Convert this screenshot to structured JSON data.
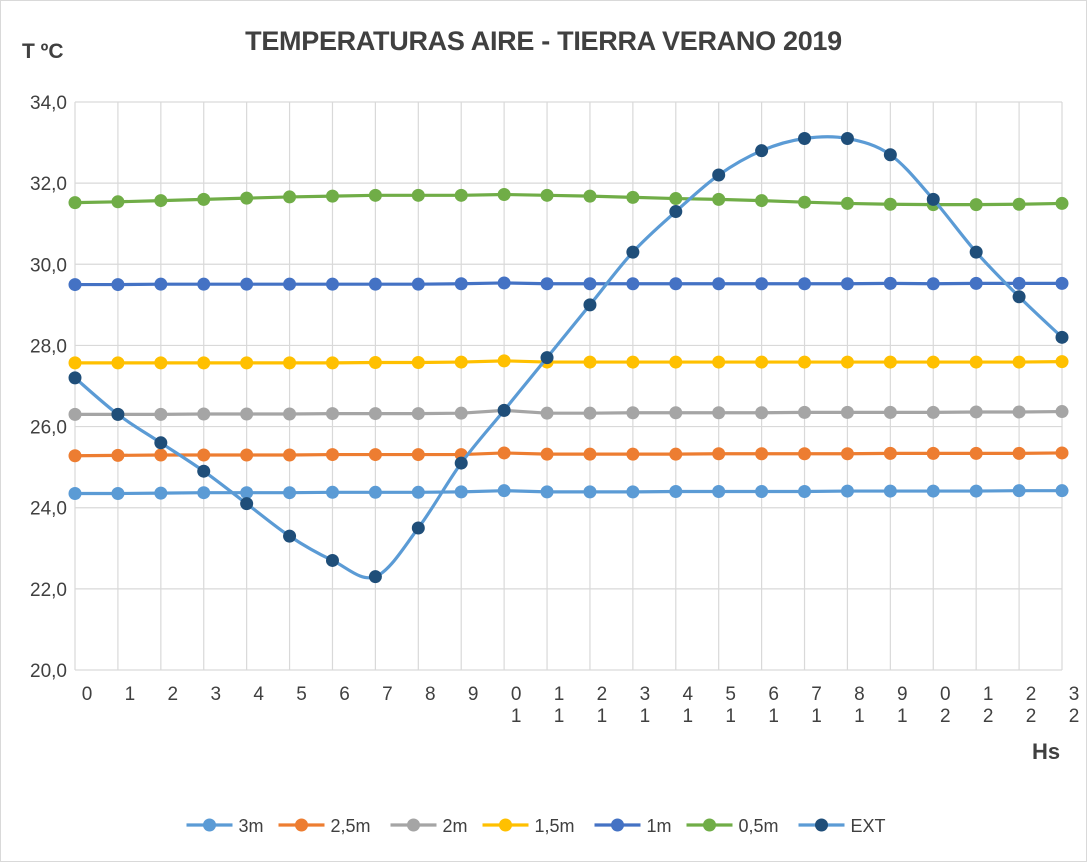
{
  "chart_data": {
    "type": "line",
    "title": "TEMPERATURAS AIRE - TIERRA   VERANO 2019",
    "ylabel": "T ºC",
    "xlabel": "Hs",
    "ylim": [
      20,
      34
    ],
    "yticks": [
      "20,0",
      "22,0",
      "24,0",
      "26,0",
      "28,0",
      "30,0",
      "32,0",
      "34,0"
    ],
    "ytick_values": [
      20,
      22,
      24,
      26,
      28,
      30,
      32,
      34
    ],
    "x_tick_labels": [
      "0",
      "1",
      "2",
      "3",
      "4",
      "5",
      "6",
      "7",
      "8",
      "9",
      "10",
      "11",
      "12",
      "13",
      "14",
      "15",
      "16",
      "17",
      "18",
      "19",
      "20",
      "21",
      "22",
      "23"
    ],
    "grid": "vertical and horizontal gridlines",
    "legend_position": "bottom",
    "series": [
      {
        "name": "3m",
        "color": "#5b9bd5",
        "values": [
          24.35,
          24.35,
          24.36,
          24.37,
          24.37,
          24.37,
          24.38,
          24.38,
          24.38,
          24.39,
          24.42,
          24.39,
          24.39,
          24.39,
          24.4,
          24.4,
          24.4,
          24.4,
          24.41,
          24.41,
          24.41,
          24.41,
          24.42,
          24.42
        ]
      },
      {
        "name": "2,5m",
        "color": "#ed7d31",
        "values": [
          25.28,
          25.29,
          25.3,
          25.3,
          25.3,
          25.3,
          25.31,
          25.31,
          25.31,
          25.31,
          25.35,
          25.32,
          25.32,
          25.32,
          25.32,
          25.33,
          25.33,
          25.33,
          25.33,
          25.34,
          25.34,
          25.34,
          25.34,
          25.35
        ]
      },
      {
        "name": "2m",
        "color": "#a5a5a5",
        "values": [
          26.3,
          26.3,
          26.3,
          26.31,
          26.31,
          26.31,
          26.32,
          26.32,
          26.32,
          26.33,
          26.4,
          26.33,
          26.33,
          26.34,
          26.34,
          26.34,
          26.34,
          26.35,
          26.35,
          26.35,
          26.35,
          26.36,
          26.36,
          26.37
        ]
      },
      {
        "name": "1,5m",
        "color": "#ffc000",
        "values": [
          27.57,
          27.57,
          27.57,
          27.57,
          27.57,
          27.57,
          27.57,
          27.58,
          27.58,
          27.59,
          27.62,
          27.59,
          27.59,
          27.59,
          27.59,
          27.59,
          27.59,
          27.59,
          27.59,
          27.59,
          27.59,
          27.59,
          27.59,
          27.6
        ]
      },
      {
        "name": "1m",
        "color": "#4472c4",
        "values": [
          29.5,
          29.5,
          29.51,
          29.51,
          29.51,
          29.51,
          29.51,
          29.51,
          29.51,
          29.52,
          29.54,
          29.52,
          29.52,
          29.52,
          29.52,
          29.52,
          29.52,
          29.52,
          29.52,
          29.53,
          29.52,
          29.53,
          29.53,
          29.53
        ]
      },
      {
        "name": "0,5m",
        "color": "#70ad47",
        "values": [
          31.52,
          31.54,
          31.57,
          31.6,
          31.63,
          31.66,
          31.68,
          31.7,
          31.7,
          31.7,
          31.72,
          31.7,
          31.68,
          31.65,
          31.62,
          31.6,
          31.57,
          31.53,
          31.5,
          31.48,
          31.47,
          31.47,
          31.48,
          31.5
        ]
      },
      {
        "name": "EXT",
        "color": "#1f4e79",
        "line_color": "#5b9bd5",
        "values": [
          27.2,
          26.3,
          25.6,
          24.9,
          24.1,
          23.3,
          22.7,
          22.3,
          23.5,
          25.1,
          26.4,
          27.7,
          29.0,
          30.3,
          31.3,
          32.2,
          32.8,
          33.1,
          33.1,
          32.7,
          31.6,
          30.3,
          29.2,
          28.2
        ]
      }
    ]
  }
}
